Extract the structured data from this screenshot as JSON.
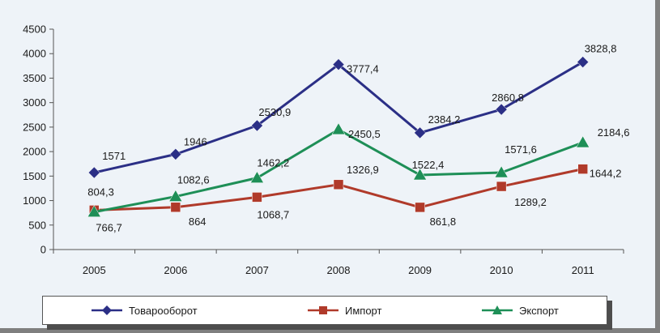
{
  "chart_data": {
    "type": "line",
    "x": [
      "2005",
      "2006",
      "2007",
      "2008",
      "2009",
      "2010",
      "2011"
    ],
    "ylim": [
      0,
      4500
    ],
    "yticks": [
      "0",
      "500",
      "1000",
      "1500",
      "2000",
      "2500",
      "3000",
      "3500",
      "4000",
      "4500"
    ],
    "grid": false,
    "legend_position": "bottom",
    "series": [
      {
        "name": "Товарооборот",
        "color": "#2b2f86",
        "marker": "diamond",
        "values": [
          1571,
          1946,
          2530.9,
          3777.4,
          2384.2,
          2860.8,
          3828.8
        ],
        "labels": [
          "1571",
          "1946",
          "2530,9",
          "3777,4",
          "2384,2",
          "2860,8",
          "3828,8"
        ]
      },
      {
        "name": "Импорт",
        "color": "#b03a2a",
        "marker": "square",
        "values": [
          804.3,
          864,
          1068.7,
          1326.9,
          861.8,
          1289.2,
          1644.2
        ],
        "labels": [
          "804,3",
          "864",
          "1068,7",
          "1326,9",
          "861,8",
          "1289,2",
          "1644,2"
        ]
      },
      {
        "name": "Экспорт",
        "color": "#1e8f57",
        "marker": "triangle",
        "values": [
          766.7,
          1082.6,
          1462.2,
          2450.5,
          1522.4,
          1571.6,
          2184.6
        ],
        "labels": [
          "766,7",
          "1082,6",
          "1462,2",
          "2450,5",
          "1522,4",
          "1571,6",
          "2184,6"
        ]
      }
    ]
  }
}
